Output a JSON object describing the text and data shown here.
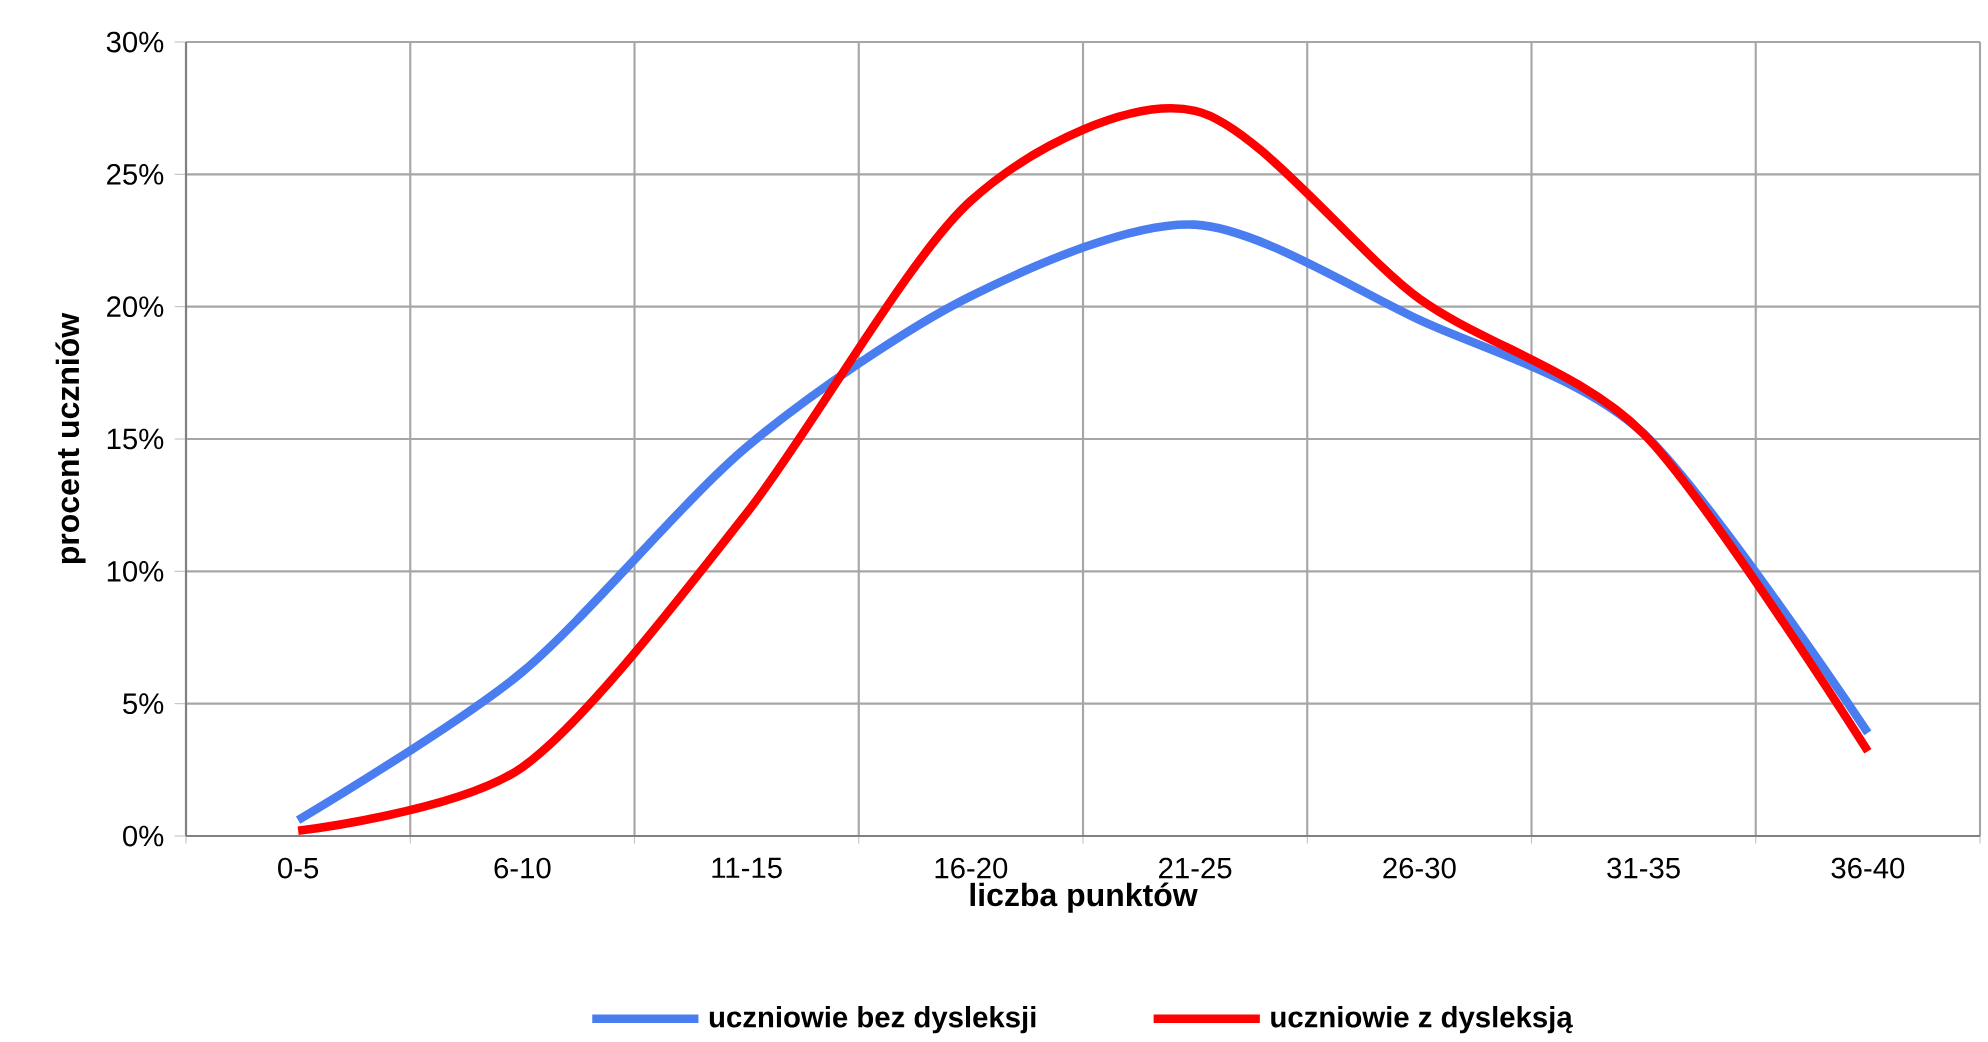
{
  "chart_data": {
    "type": "line",
    "xlabel": "liczba punktów",
    "ylabel": "procent  uczniów",
    "categories": [
      "0-5",
      "6-10",
      "11-15",
      "16-20",
      "21-25",
      "26-30",
      "31-35",
      "36-40"
    ],
    "series": [
      {
        "name": "uczniowie bez dysleksji",
        "color": "#4a7ef0",
        "values": [
          0.6,
          6.2,
          14.7,
          20.4,
          23.1,
          19.5,
          15.2,
          3.9
        ]
      },
      {
        "name": "uczniowie z dysleksją",
        "color": "#ff0000",
        "values": [
          0.2,
          2.6,
          12.2,
          24.0,
          27.4,
          20.3,
          15.2,
          3.2
        ]
      }
    ],
    "ylim": [
      0,
      30
    ],
    "yticks": [
      {
        "value": 0,
        "label": "0%"
      },
      {
        "value": 5,
        "label": "5%"
      },
      {
        "value": 10,
        "label": "10%"
      },
      {
        "value": 15,
        "label": "15%"
      },
      {
        "value": 20,
        "label": "20%"
      },
      {
        "value": 25,
        "label": "25%"
      },
      {
        "value": 30,
        "label": "30%"
      }
    ],
    "grid": true,
    "legend": "bottom"
  }
}
